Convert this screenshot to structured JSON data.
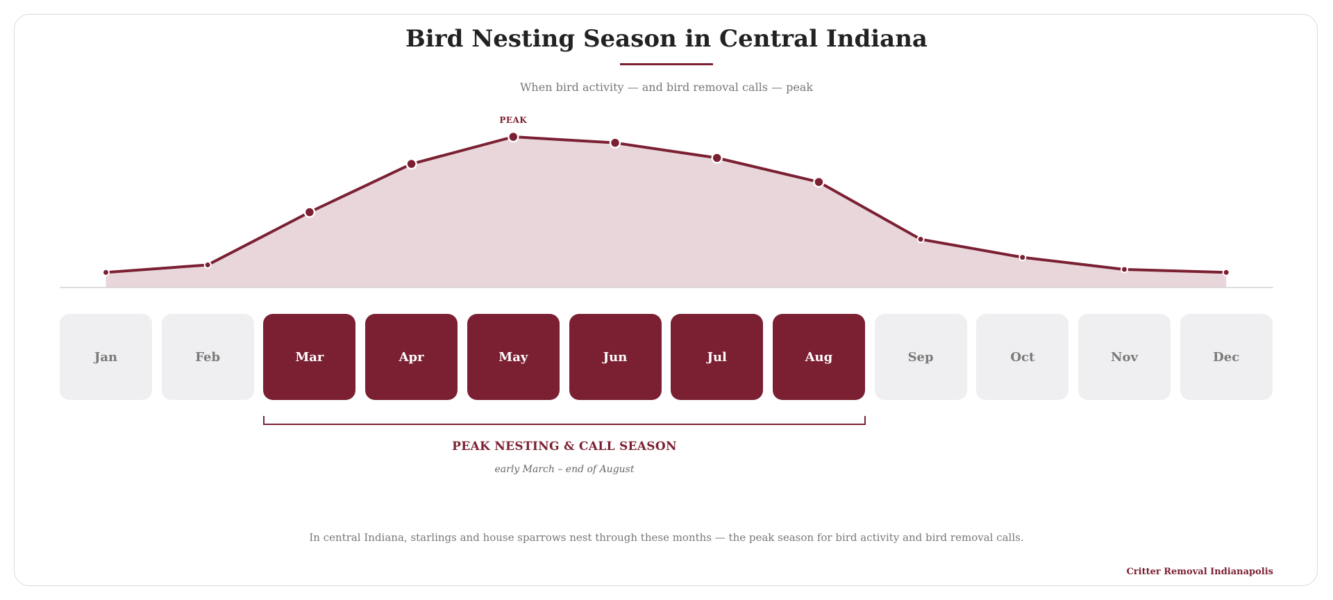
{
  "header": {
    "title": "Bird Nesting Season in Central Indiana",
    "subtitle": "When bird activity — and bird removal calls — peak"
  },
  "chart_data": {
    "type": "area",
    "categories": [
      "Jan",
      "Feb",
      "Mar",
      "Apr",
      "May",
      "Jun",
      "Jul",
      "Aug",
      "Sep",
      "Oct",
      "Nov",
      "Dec"
    ],
    "values": [
      10,
      15,
      50,
      82,
      100,
      96,
      86,
      70,
      32,
      20,
      12,
      10
    ],
    "ylim": [
      0,
      100
    ],
    "peak_label": "PEAK",
    "peak_index": 4,
    "highlighted_range": [
      2,
      7
    ],
    "grid": false,
    "colors": {
      "accent": "#7b2032",
      "fill": "#e8d6da",
      "inactive": "#efeff1"
    }
  },
  "season": {
    "label": "PEAK NESTING & CALL SEASON",
    "range_text": "early March – end of August"
  },
  "footnote": "In central Indiana, starlings and house sparrows nest through these months — the peak season for bird activity and bird removal calls.",
  "brand": "Critter Removal Indianapolis"
}
